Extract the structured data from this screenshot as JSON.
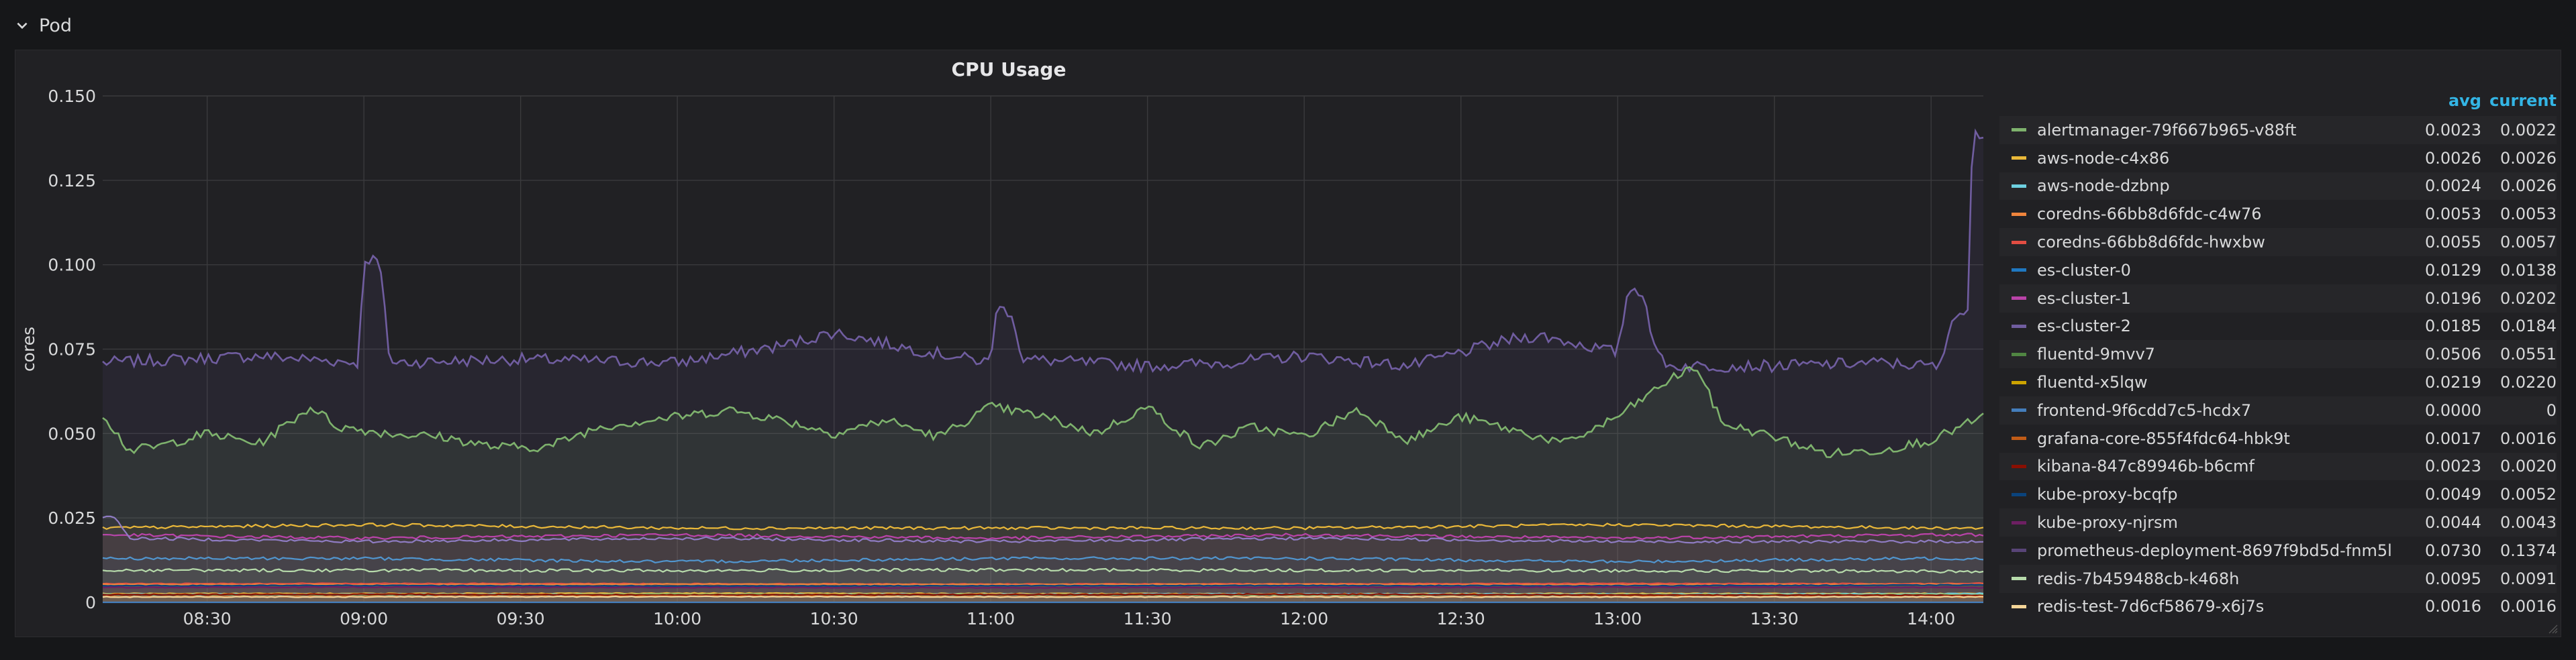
{
  "row": {
    "title": "Pod"
  },
  "panel": {
    "title": "CPU Usage"
  },
  "legend": {
    "headers": {
      "avg": "avg",
      "current": "current"
    },
    "items": [
      {
        "name": "alertmanager-79f667b965-v88ft",
        "avg": "0.0023",
        "current": "0.0022",
        "color": "#7eb26d"
      },
      {
        "name": "aws-node-c4x86",
        "avg": "0.0026",
        "current": "0.0026",
        "color": "#eab839"
      },
      {
        "name": "aws-node-dzbnp",
        "avg": "0.0024",
        "current": "0.0026",
        "color": "#6ed0e0"
      },
      {
        "name": "coredns-66bb8d6fdc-c4w76",
        "avg": "0.0053",
        "current": "0.0053",
        "color": "#ef843c"
      },
      {
        "name": "coredns-66bb8d6fdc-hwxbw",
        "avg": "0.0055",
        "current": "0.0057",
        "color": "#e24d42"
      },
      {
        "name": "es-cluster-0",
        "avg": "0.0129",
        "current": "0.0138",
        "color": "#1f78c1"
      },
      {
        "name": "es-cluster-1",
        "avg": "0.0196",
        "current": "0.0202",
        "color": "#ba43a9"
      },
      {
        "name": "es-cluster-2",
        "avg": "0.0185",
        "current": "0.0184",
        "color": "#705da0"
      },
      {
        "name": "fluentd-9mvv7",
        "avg": "0.0506",
        "current": "0.0551",
        "color": "#508642"
      },
      {
        "name": "fluentd-x5lqw",
        "avg": "0.0219",
        "current": "0.0220",
        "color": "#cca300"
      },
      {
        "name": "frontend-9f6cdd7c5-hcdx7",
        "avg": "0.0000",
        "current": "0",
        "color": "#447ebc"
      },
      {
        "name": "grafana-core-855f4fdc64-hbk9t",
        "avg": "0.0017",
        "current": "0.0016",
        "color": "#c15c17"
      },
      {
        "name": "kibana-847c89946b-b6cmf",
        "avg": "0.0023",
        "current": "0.0020",
        "color": "#890f02"
      },
      {
        "name": "kube-proxy-bcqfp",
        "avg": "0.0049",
        "current": "0.0052",
        "color": "#0a437c"
      },
      {
        "name": "kube-proxy-njrsm",
        "avg": "0.0044",
        "current": "0.0043",
        "color": "#6d1f62"
      },
      {
        "name": "prometheus-deployment-8697f9bd5d-fnm5l",
        "avg": "0.0730",
        "current": "0.1374",
        "color": "#584477"
      },
      {
        "name": "redis-7b459488cb-k468h",
        "avg": "0.0095",
        "current": "0.0091",
        "color": "#b7dbab"
      },
      {
        "name": "redis-test-7d6cf58679-x6j7s",
        "avg": "0.0016",
        "current": "0.0016",
        "color": "#f4d598"
      }
    ]
  },
  "chart_data": {
    "type": "line",
    "title": "CPU Usage",
    "xlabel": "",
    "ylabel": "cores",
    "x_range": [
      "08:10",
      "14:10"
    ],
    "x_ticks": [
      "08:30",
      "09:00",
      "09:30",
      "10:00",
      "10:30",
      "11:00",
      "11:30",
      "12:00",
      "12:30",
      "13:00",
      "13:30",
      "14:00"
    ],
    "ylim": [
      0,
      0.15
    ],
    "y_ticks": [
      0,
      0.025,
      0.05,
      0.075,
      0.1,
      0.125,
      0.15
    ],
    "y_tick_labels": [
      "0",
      "0.025",
      "0.050",
      "0.075",
      "0.100",
      "0.125",
      "0.150"
    ],
    "grid": true,
    "legend_placement": "right",
    "series": [
      {
        "name": "prometheus-deployment-8697f9bd5d-fnm5l",
        "color": "#705da0",
        "x": [
          "08:10",
          "08:40",
          "08:59",
          "09:00",
          "09:03",
          "09:05",
          "09:30",
          "10:00",
          "10:20",
          "10:30",
          "10:45",
          "11:00",
          "11:01",
          "11:04",
          "11:06",
          "11:30",
          "11:45",
          "12:00",
          "12:20",
          "12:40",
          "12:45",
          "13:00",
          "13:02",
          "13:05",
          "13:07",
          "13:10",
          "13:30",
          "13:50",
          "14:00",
          "14:02",
          "14:04",
          "14:07",
          "14:08",
          "14:10"
        ],
        "values": [
          0.071,
          0.073,
          0.071,
          0.102,
          0.101,
          0.071,
          0.072,
          0.071,
          0.076,
          0.08,
          0.075,
          0.071,
          0.087,
          0.086,
          0.072,
          0.07,
          0.071,
          0.073,
          0.07,
          0.078,
          0.079,
          0.074,
          0.093,
          0.092,
          0.075,
          0.07,
          0.07,
          0.071,
          0.07,
          0.07,
          0.085,
          0.086,
          0.141,
          0.138
        ]
      },
      {
        "name": "fluentd-9mvv7",
        "color": "#7eb26d",
        "x": [
          "08:10",
          "08:15",
          "08:20",
          "08:30",
          "08:40",
          "08:50",
          "08:55",
          "09:05",
          "09:15",
          "09:25",
          "09:35",
          "09:45",
          "10:00",
          "10:10",
          "10:20",
          "10:30",
          "10:40",
          "10:50",
          "11:00",
          "11:10",
          "11:20",
          "11:30",
          "11:40",
          "11:50",
          "12:00",
          "12:10",
          "12:20",
          "12:30",
          "12:40",
          "12:50",
          "13:00",
          "13:10",
          "13:15",
          "13:20",
          "13:30",
          "13:40",
          "13:50",
          "14:00",
          "14:10"
        ],
        "values": [
          0.056,
          0.045,
          0.046,
          0.05,
          0.047,
          0.058,
          0.052,
          0.05,
          0.049,
          0.046,
          0.046,
          0.052,
          0.055,
          0.057,
          0.054,
          0.05,
          0.054,
          0.049,
          0.058,
          0.055,
          0.05,
          0.058,
          0.046,
          0.052,
          0.049,
          0.057,
          0.048,
          0.055,
          0.051,
          0.047,
          0.055,
          0.066,
          0.07,
          0.053,
          0.049,
          0.044,
          0.045,
          0.048,
          0.055
        ]
      },
      {
        "name": "fluentd-x5lqw",
        "color": "#eab839",
        "x": [
          "08:10",
          "09:00",
          "10:00",
          "11:00",
          "12:00",
          "13:00",
          "14:00",
          "14:10"
        ],
        "values": [
          0.022,
          0.023,
          0.022,
          0.022,
          0.022,
          0.023,
          0.022,
          0.022
        ]
      },
      {
        "name": "es-cluster-1",
        "color": "#ba43a9",
        "x": [
          "08:10",
          "09:00",
          "10:00",
          "11:00",
          "12:00",
          "13:00",
          "14:00",
          "14:10"
        ],
        "values": [
          0.02,
          0.019,
          0.02,
          0.019,
          0.02,
          0.019,
          0.02,
          0.02
        ]
      },
      {
        "name": "es-cluster-2",
        "color": "#8f7cc3",
        "x": [
          "08:10",
          "08:12",
          "08:15",
          "09:00",
          "10:00",
          "11:00",
          "12:00",
          "13:00",
          "14:00",
          "14:10"
        ],
        "values": [
          0.025,
          0.026,
          0.019,
          0.018,
          0.019,
          0.018,
          0.019,
          0.018,
          0.018,
          0.018
        ]
      },
      {
        "name": "es-cluster-0",
        "color": "#5195ce",
        "x": [
          "08:10",
          "09:00",
          "10:00",
          "11:00",
          "12:00",
          "13:00",
          "14:00",
          "14:10"
        ],
        "values": [
          0.013,
          0.013,
          0.012,
          0.013,
          0.013,
          0.012,
          0.013,
          0.013
        ]
      },
      {
        "name": "redis-7b459488cb-k468h",
        "color": "#b7dbab",
        "x": [
          "08:10",
          "09:00",
          "10:00",
          "11:00",
          "12:00",
          "13:00",
          "14:00",
          "14:10"
        ],
        "values": [
          0.0095,
          0.0095,
          0.0094,
          0.0096,
          0.0095,
          0.0094,
          0.0092,
          0.0091
        ]
      },
      {
        "name": "coredns-66bb8d6fdc-hwxbw",
        "color": "#e24d42",
        "x": [
          "08:10",
          "09:00",
          "10:00",
          "11:00",
          "12:00",
          "13:00",
          "14:00",
          "14:10"
        ],
        "values": [
          0.0055,
          0.0056,
          0.0055,
          0.0054,
          0.0055,
          0.0056,
          0.0055,
          0.0057
        ]
      },
      {
        "name": "coredns-66bb8d6fdc-c4w76",
        "color": "#ef843c",
        "x": [
          "08:10",
          "09:00",
          "10:00",
          "11:00",
          "12:00",
          "13:00",
          "14:00",
          "14:10"
        ],
        "values": [
          0.0053,
          0.0052,
          0.0054,
          0.0053,
          0.0053,
          0.0052,
          0.0053,
          0.0053
        ]
      },
      {
        "name": "kube-proxy-bcqfp",
        "color": "#0a437c",
        "x": [
          "08:10",
          "09:00",
          "10:00",
          "11:00",
          "12:00",
          "13:00",
          "14:00",
          "14:10"
        ],
        "values": [
          0.0049,
          0.005,
          0.0048,
          0.0049,
          0.005,
          0.0049,
          0.0051,
          0.0052
        ]
      },
      {
        "name": "kube-proxy-njrsm",
        "color": "#6d1f62",
        "x": [
          "08:10",
          "09:00",
          "10:00",
          "11:00",
          "12:00",
          "13:00",
          "14:00",
          "14:10"
        ],
        "values": [
          0.0044,
          0.0045,
          0.0044,
          0.0043,
          0.0044,
          0.0045,
          0.0044,
          0.0043
        ]
      },
      {
        "name": "aws-node-c4x86",
        "color": "#eab839",
        "x": [
          "08:10",
          "09:00",
          "10:00",
          "11:00",
          "12:00",
          "13:00",
          "14:00",
          "14:10"
        ],
        "values": [
          0.0026,
          0.0026,
          0.0027,
          0.0026,
          0.0025,
          0.0026,
          0.0026,
          0.0026
        ]
      },
      {
        "name": "aws-node-dzbnp",
        "color": "#6ed0e0",
        "x": [
          "08:10",
          "09:00",
          "10:00",
          "11:00",
          "12:00",
          "13:00",
          "14:00",
          "14:10"
        ],
        "values": [
          0.0024,
          0.0024,
          0.0023,
          0.0024,
          0.0025,
          0.0024,
          0.0025,
          0.0026
        ]
      },
      {
        "name": "alertmanager-79f667b965-v88ft",
        "color": "#7eb26d",
        "x": [
          "08:10",
          "09:00",
          "10:00",
          "11:00",
          "12:00",
          "13:00",
          "14:00",
          "14:10"
        ],
        "values": [
          0.0023,
          0.0023,
          0.0024,
          0.0023,
          0.0022,
          0.0023,
          0.0023,
          0.0022
        ]
      },
      {
        "name": "kibana-847c89946b-b6cmf",
        "color": "#890f02",
        "x": [
          "08:10",
          "09:00",
          "10:00",
          "11:00",
          "12:00",
          "13:00",
          "14:00",
          "14:10"
        ],
        "values": [
          0.0023,
          0.0024,
          0.0022,
          0.0023,
          0.0024,
          0.0022,
          0.0021,
          0.002
        ]
      },
      {
        "name": "grafana-core-855f4fdc64-hbk9t",
        "color": "#c15c17",
        "x": [
          "08:10",
          "09:00",
          "10:00",
          "11:00",
          "12:00",
          "13:00",
          "14:00",
          "14:10"
        ],
        "values": [
          0.0017,
          0.0017,
          0.0018,
          0.0017,
          0.0016,
          0.0017,
          0.0016,
          0.0016
        ]
      },
      {
        "name": "redis-test-7d6cf58679-x6j7s",
        "color": "#f4d598",
        "x": [
          "08:10",
          "09:00",
          "10:00",
          "11:00",
          "12:00",
          "13:00",
          "14:00",
          "14:10"
        ],
        "values": [
          0.0016,
          0.0016,
          0.0017,
          0.0016,
          0.0016,
          0.0016,
          0.0016,
          0.0016
        ]
      },
      {
        "name": "frontend-9f6cdd7c5-hcdx7",
        "color": "#447ebc",
        "x": [
          "08:10",
          "14:10"
        ],
        "values": [
          0,
          0
        ]
      }
    ]
  }
}
